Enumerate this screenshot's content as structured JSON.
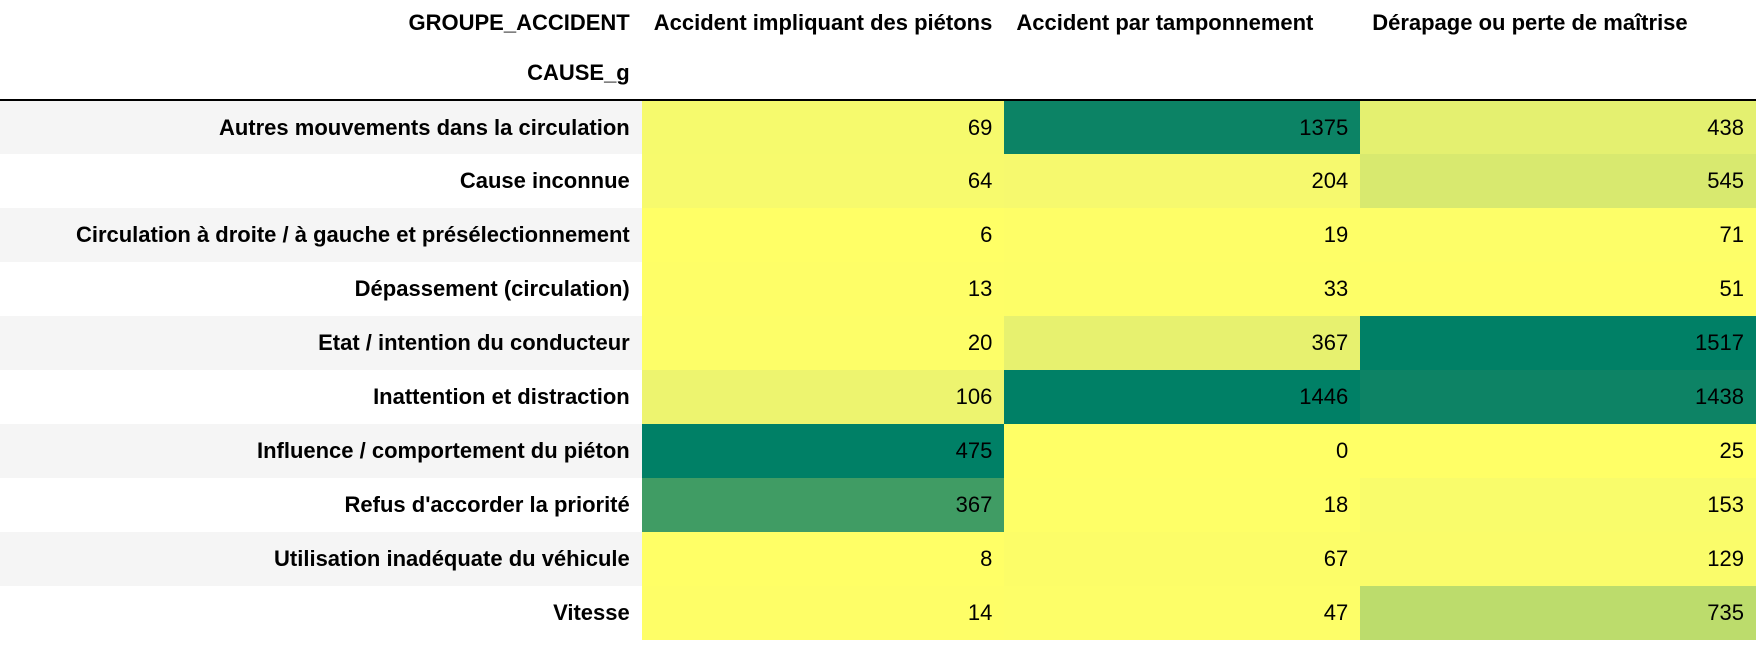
{
  "chart_data": {
    "type": "heatmap",
    "columns_name": "GROUPE_ACCIDENT",
    "index_name": "CAUSE_g",
    "columns": [
      "Accident impliquant des piétons",
      "Accident par tamponnement",
      "Dérapage ou perte de maîtrise"
    ],
    "rows": [
      "Autres mouvements dans la circulation",
      "Cause inconnue",
      "Circulation à droite / à gauche et présélectionnement",
      "Dépassement (circulation)",
      "Etat / intention du conducteur",
      "Inattention et distraction",
      "Influence / comportement du piéton",
      "Refus d'accorder la priorité",
      "Utilisation inadéquate du véhicule",
      "Vitesse"
    ],
    "values": [
      [
        69,
        1375,
        438
      ],
      [
        64,
        204,
        545
      ],
      [
        6,
        19,
        71
      ],
      [
        13,
        33,
        51
      ],
      [
        20,
        367,
        1517
      ],
      [
        106,
        1446,
        1438
      ],
      [
        475,
        0,
        25
      ],
      [
        367,
        18,
        153
      ],
      [
        8,
        67,
        129
      ],
      [
        14,
        47,
        735
      ]
    ],
    "colormap": "YlGn (per-column scaling)",
    "colors": {
      "low": "#ffff66",
      "mid": "#b4d96b",
      "high": "#008066"
    }
  }
}
